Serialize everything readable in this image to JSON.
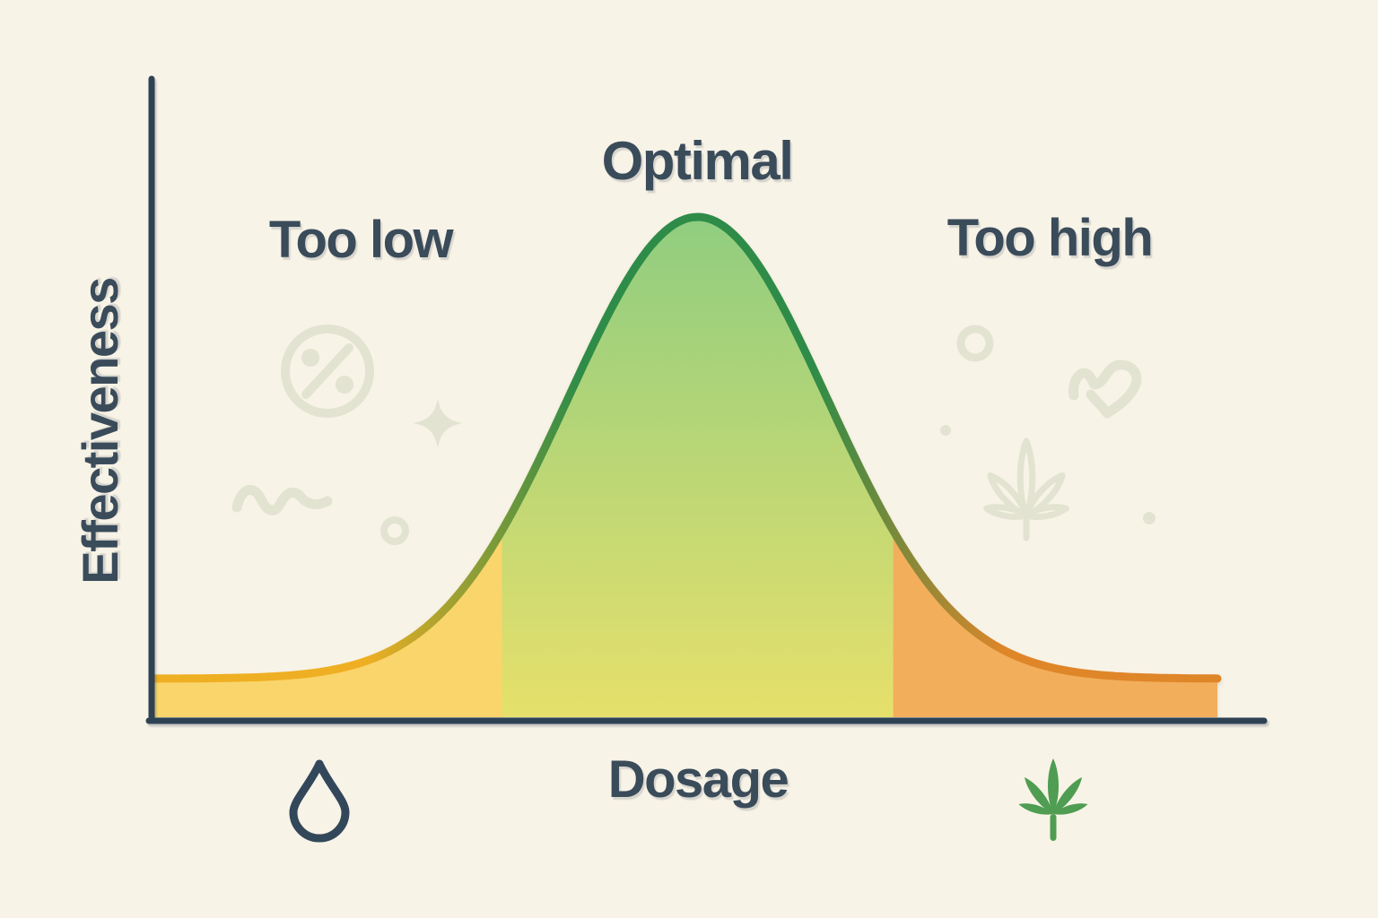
{
  "background_color": "#F8F3E7",
  "text_color": "#3A4B5A",
  "chart_data": {
    "type": "area",
    "title": "",
    "xlabel": "Dosage",
    "ylabel": "Effectiveness",
    "grid": false,
    "legend": null,
    "x_range_norm": [
      0,
      1
    ],
    "y_range_norm": [
      0,
      1
    ],
    "curve": {
      "shape": "gaussian",
      "mu": 0.511,
      "sigma": 0.122,
      "baseline": 0.077,
      "amplitude": 0.923
    },
    "regions": [
      {
        "label": "Too low",
        "x_start": 0,
        "x_end": 0.327,
        "fill": "#FAD56B",
        "stroke": "#EEAF23"
      },
      {
        "label": "Optimal",
        "x_start": 0.327,
        "x_end": 0.695,
        "fill_top": "#90CD80",
        "fill_bottom": "#E6E06B",
        "stroke": "#2E8C48"
      },
      {
        "label": "Too high",
        "x_start": 0.695,
        "x_end": 1,
        "fill": "#F3AE5B",
        "stroke": "#DF8629"
      }
    ],
    "axes": {
      "color": "#2E4254"
    }
  },
  "icons": {
    "x_axis_left": "water-drop-icon",
    "x_axis_right": "cannabis-leaf-icon",
    "decorations": [
      "percent-icon",
      "sparkle-icon",
      "squiggle-icon",
      "donut-circle-icon",
      "circle-outline-icon",
      "heart-squiggle-icon",
      "dot-icon",
      "faded-cannabis-leaf-icon",
      "dot-icon"
    ],
    "decoration_color": "#E3E3D2",
    "drop_icon_color": "#33475A",
    "leaf_icon_color": "#4F9D52"
  }
}
